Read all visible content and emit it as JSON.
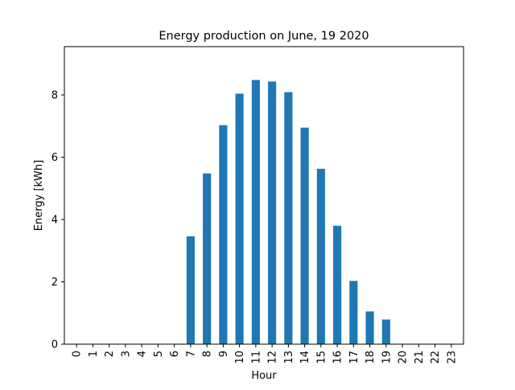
{
  "chart_data": {
    "type": "bar",
    "title": "Energy production on June, 19 2020",
    "xlabel": "Hour",
    "ylabel": "Energy [kWh]",
    "categories": [
      "0",
      "1",
      "2",
      "3",
      "4",
      "5",
      "6",
      "7",
      "8",
      "9",
      "10",
      "11",
      "12",
      "13",
      "14",
      "15",
      "16",
      "17",
      "18",
      "19",
      "20",
      "21",
      "22",
      "23"
    ],
    "values": [
      0,
      0,
      0,
      0,
      0,
      0,
      0,
      3.46,
      5.48,
      7.03,
      8.04,
      8.48,
      8.43,
      8.09,
      6.95,
      5.63,
      3.8,
      2.03,
      1.05,
      0.79,
      0,
      0,
      0,
      0
    ],
    "ylim": [
      0,
      9.55
    ],
    "yticks": [
      0,
      2,
      4,
      6,
      8
    ],
    "bar_color": "#1f77b4",
    "grid": false,
    "legend": "none"
  }
}
